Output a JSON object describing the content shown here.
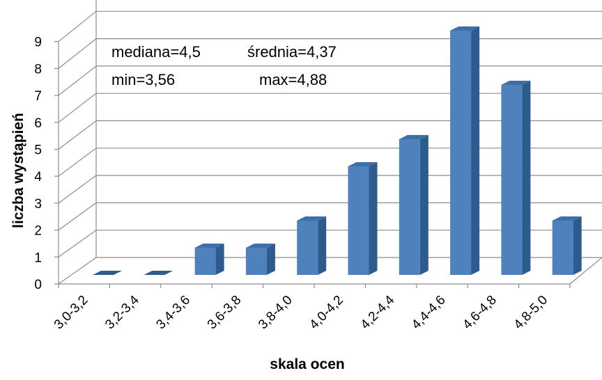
{
  "chart_data": {
    "type": "bar",
    "title": "",
    "xlabel": "skala ocen",
    "ylabel": "liczba wystąpień",
    "categories": [
      "3,0-3,2",
      "3,2-3,4",
      "3,4-3,6",
      "3,6-3,8",
      "3,8-4,0",
      "4,0-4,2",
      "4,2-4,4",
      "4,4-4,6",
      "4,6-4,8",
      "4,8-5,0"
    ],
    "values": [
      0,
      0,
      1,
      1,
      2,
      4,
      5,
      9,
      7,
      2
    ],
    "ylim": [
      0,
      9
    ],
    "yticks": [
      "0",
      "1",
      "2",
      "3",
      "4",
      "5",
      "6",
      "7",
      "8",
      "9"
    ],
    "grid": true,
    "style": "3d-column",
    "bar_color": "#4F81BD",
    "annotations": {
      "median": "mediana=4,5",
      "mean": "średnia=4,37",
      "min": "min=3,56",
      "max": "max=4,88"
    }
  }
}
